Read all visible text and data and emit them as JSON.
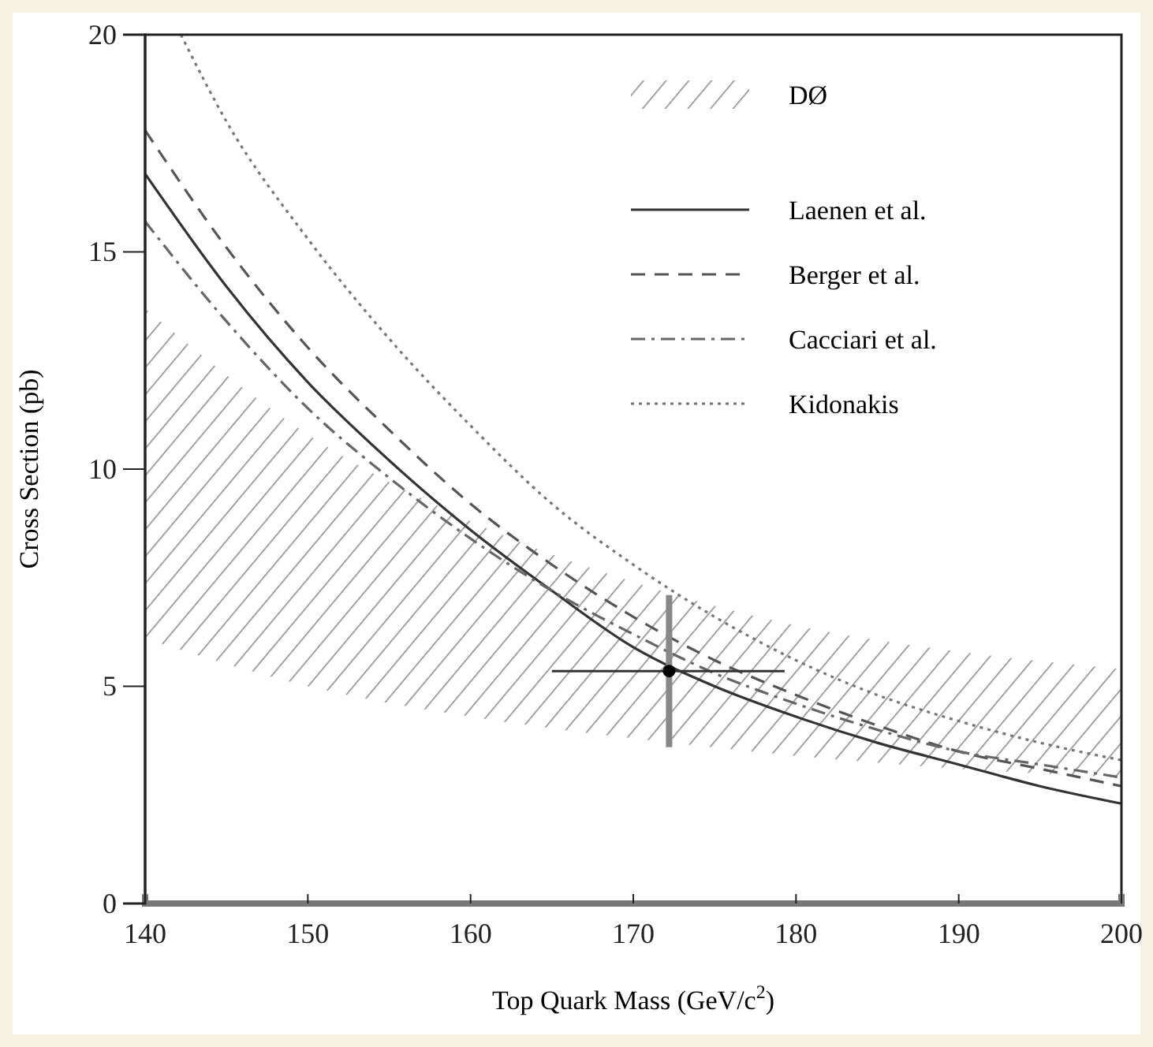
{
  "chart_data": {
    "type": "line",
    "xlabel": "Top Quark Mass (GeV/c$^{2}$)",
    "ylabel": "Cross Section (pb)",
    "xlim": [
      140,
      200
    ],
    "ylim": [
      0,
      20
    ],
    "xticks": [
      140,
      150,
      160,
      170,
      180,
      190,
      200
    ],
    "yticks": [
      0,
      5,
      10,
      15,
      20
    ],
    "grid": false,
    "legend": "top right",
    "marker": "none",
    "series": [
      {
        "name": "DØ",
        "type": "area",
        "color": "#8c8c8c",
        "x": [
          140,
          150,
          160,
          170,
          180,
          190,
          200
        ],
        "values": [
          null,
          null,
          null,
          null,
          null,
          null,
          null
        ],
        "lower": [
          6.1,
          5.0,
          4.3,
          3.8,
          3.4,
          3.1,
          2.9
        ],
        "upper": [
          13.7,
          10.8,
          8.8,
          7.4,
          6.4,
          5.8,
          5.4
        ]
      },
      {
        "name": "Laenen et al.",
        "color": "#333333",
        "line_style": "solid",
        "x": [
          140,
          145,
          150,
          155,
          160,
          165,
          170,
          175,
          180,
          185,
          190,
          195,
          200
        ],
        "values": [
          16.8,
          14.2,
          12.0,
          10.2,
          8.6,
          7.2,
          5.9,
          5.0,
          4.3,
          3.7,
          3.2,
          2.7,
          2.3
        ]
      },
      {
        "name": "Berger et al.",
        "color": "#555555",
        "line_style": "dashed",
        "x": [
          140,
          145,
          150,
          155,
          160,
          165,
          170,
          175,
          180,
          185,
          190,
          195,
          200
        ],
        "values": [
          17.8,
          15.1,
          12.8,
          10.9,
          9.2,
          7.8,
          6.6,
          5.6,
          4.8,
          4.1,
          3.5,
          3.1,
          2.7
        ]
      },
      {
        "name": "Cacciari et al.",
        "color": "#666666",
        "line_style": "dashdot",
        "x": [
          140,
          145,
          150,
          155,
          160,
          165,
          170,
          175,
          180,
          185,
          190,
          195,
          200
        ],
        "values": [
          15.7,
          13.4,
          11.4,
          9.8,
          8.4,
          7.2,
          6.2,
          5.3,
          4.6,
          4.0,
          3.5,
          3.2,
          2.9
        ]
      },
      {
        "name": "Kidonakis",
        "color": "#777777",
        "line_style": "dotted",
        "x": [
          142.2,
          145,
          150,
          155,
          160,
          165,
          170,
          175,
          180,
          185,
          190,
          195,
          200
        ],
        "values": [
          20,
          18.0,
          15.3,
          13.0,
          11.0,
          9.2,
          7.8,
          6.6,
          5.6,
          4.8,
          4.2,
          3.7,
          3.3
        ]
      },
      {
        "type": "scatter",
        "color": "#000000",
        "marker": "circle",
        "x": [
          172.2
        ],
        "values": [
          5.35
        ],
        "errors": [
          [
            3.6,
            7.1
          ]
        ],
        "xerrors": [
          [
            165,
            179.3
          ]
        ]
      }
    ]
  }
}
